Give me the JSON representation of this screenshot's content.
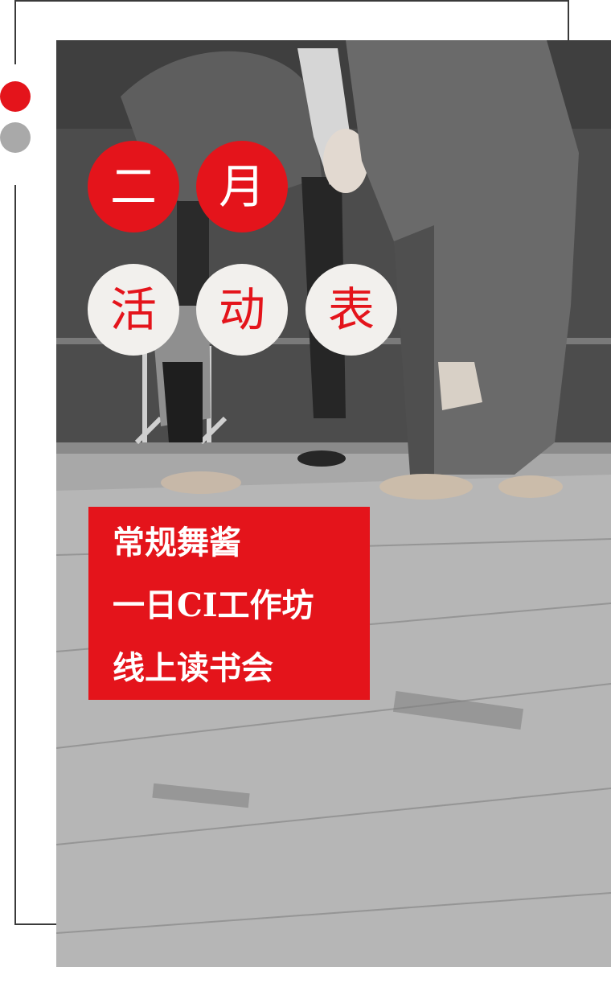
{
  "title_row_1": [
    "二",
    "月"
  ],
  "title_row_2": [
    "活",
    "动",
    "表"
  ],
  "activities": [
    "常规舞酱",
    "一日CI工作坊",
    "线上读书会"
  ],
  "colors": {
    "accent_red": "#e4141b",
    "accent_gray": "#a9a9a9",
    "circle_light": "#f2f0ed",
    "frame": "#3a3a3a"
  },
  "icons": [
    "red-dot-icon",
    "gray-dot-icon"
  ]
}
